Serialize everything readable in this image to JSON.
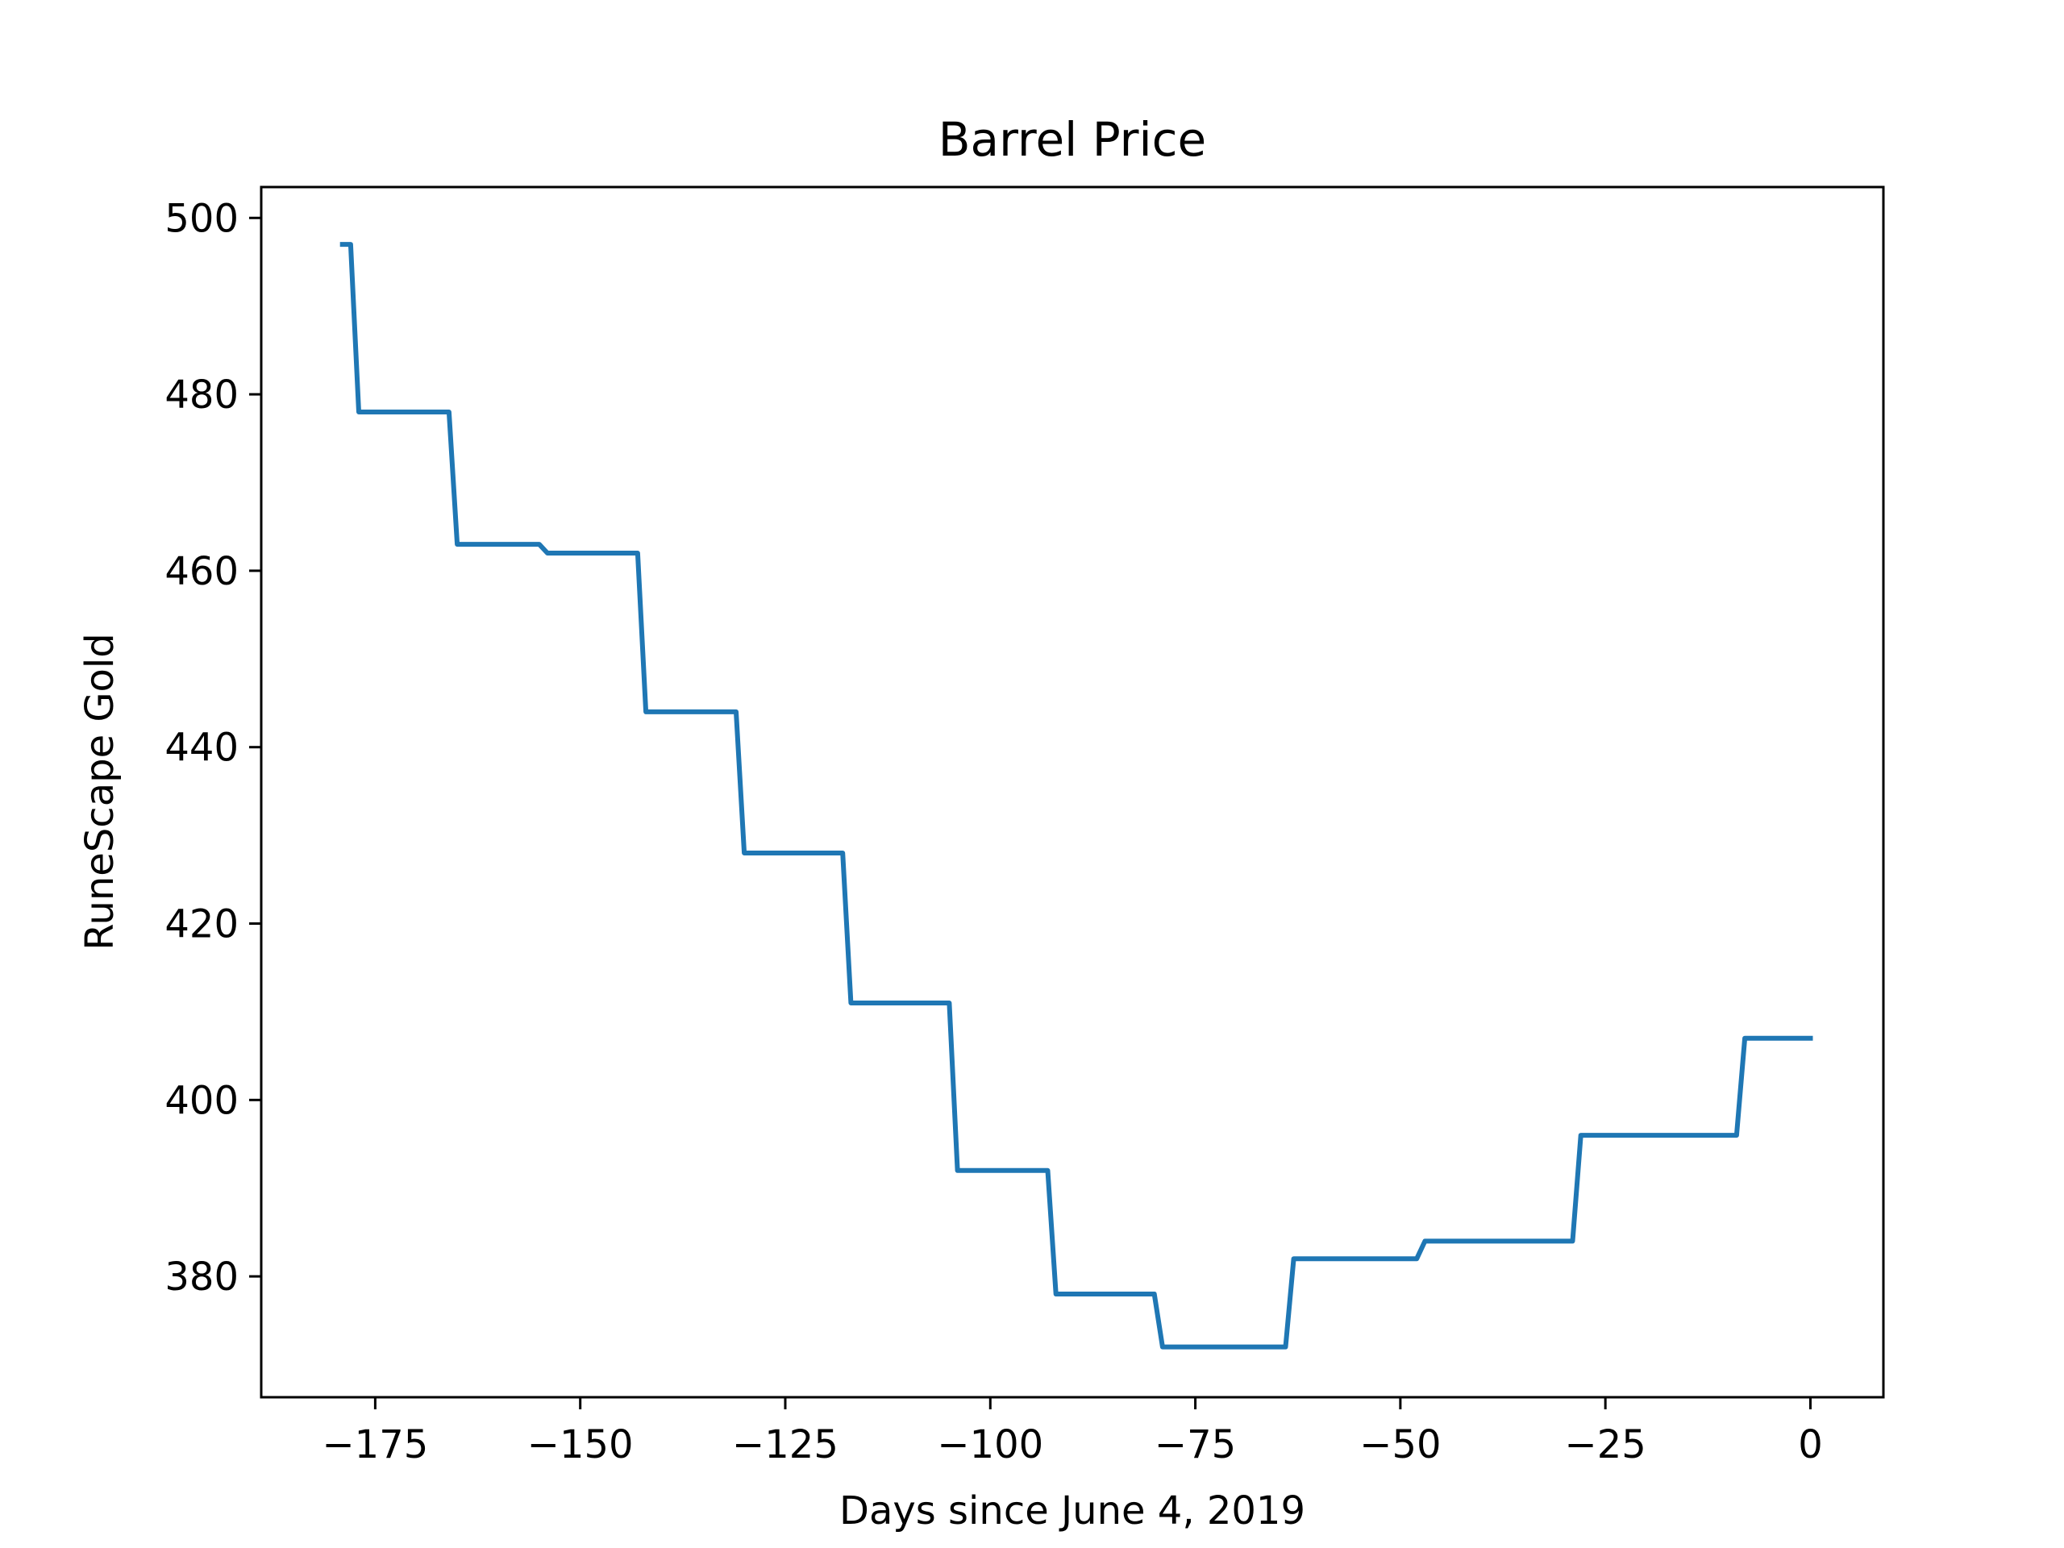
{
  "chart_data": {
    "type": "line",
    "title": "Barrel Price",
    "xlabel": "Days since June 4, 2019",
    "ylabel": "RuneScape Gold",
    "xlim": [
      -188.9,
      8.9
    ],
    "ylim": [
      366.3,
      503.5
    ],
    "xticks": [
      -175,
      -150,
      -125,
      -100,
      -75,
      -50,
      -25,
      0
    ],
    "xtick_labels": [
      "−175",
      "−150",
      "−125",
      "−100",
      "−75",
      "−50",
      "−25",
      "0"
    ],
    "yticks": [
      380,
      400,
      420,
      440,
      460,
      480,
      500
    ],
    "ytick_labels": [
      "380",
      "400",
      "420",
      "440",
      "460",
      "480",
      "500"
    ],
    "grid": false,
    "legend": "none",
    "series": [
      {
        "color": "#1f77b4",
        "x": [
          -179,
          -178,
          -177,
          -166,
          -165,
          -155,
          -154,
          -143,
          -142,
          -131,
          -130,
          -118,
          -117,
          -105,
          -104,
          -93,
          -92,
          -80,
          -79,
          -64,
          -63,
          -48,
          -47,
          -29,
          -28,
          -9,
          -8,
          0
        ],
        "y": [
          497,
          497,
          478,
          478,
          463,
          463,
          462,
          462,
          444,
          444,
          428,
          428,
          411,
          411,
          392,
          392,
          378,
          378,
          372,
          372,
          382,
          382,
          384,
          384,
          396,
          396,
          407,
          407
        ]
      }
    ]
  }
}
